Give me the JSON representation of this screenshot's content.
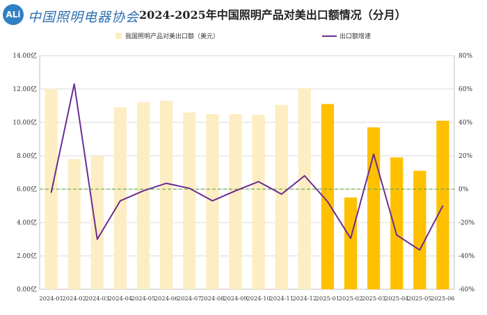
{
  "logo": {
    "badge_text": "ALi",
    "text": "中国照明电器协会"
  },
  "chart_data": {
    "type": "bar+line",
    "title": "2024-2025年中国照明产品对美出口额情况（分月）",
    "categories": [
      "2024-01",
      "2024-02",
      "2024-03",
      "2024-04",
      "2024-05",
      "2024-06",
      "2024-07",
      "2024-08",
      "2024-09",
      "2024-10",
      "2024-11",
      "2024-12",
      "2025-01",
      "2025-02",
      "2025-03",
      "2025-04",
      "2025-05",
      "2025-06"
    ],
    "series": [
      {
        "name": "我国照明产品对美出口额（美元）",
        "type": "bar",
        "axis": "left",
        "values": [
          12.0,
          7.8,
          8.0,
          10.9,
          11.2,
          11.3,
          10.6,
          10.5,
          10.5,
          10.45,
          11.05,
          12.05,
          11.1,
          5.5,
          9.7,
          7.9,
          7.1,
          10.1
        ]
      },
      {
        "name": "出口额增速",
        "type": "line",
        "axis": "right",
        "unit": "%",
        "values": [
          -2,
          63,
          -30,
          -7,
          -1,
          3.5,
          0.5,
          -7,
          -1,
          4.5,
          -3,
          8,
          -7.5,
          -29.5,
          21,
          -27.5,
          -36.5,
          -10
        ]
      }
    ],
    "left_axis": {
      "range": [
        0,
        14
      ],
      "ticks": [
        "0.00亿",
        "2.00亿",
        "4.00亿",
        "6.00亿",
        "8.00亿",
        "10.00亿",
        "12.00亿",
        "14.00亿"
      ]
    },
    "right_axis": {
      "range": [
        -60,
        80
      ],
      "ticks": [
        "-60%",
        "-40%",
        "-20%",
        "0%",
        "20%",
        "40%",
        "60%",
        "80%"
      ]
    },
    "colors": {
      "bar_2024": "#fdedc2",
      "bar_2025": "#ffc000",
      "line": "#6a2c91",
      "zero_line": "#70ad47",
      "grid": "#d9d9d9"
    },
    "grid": true,
    "legend_position": "top"
  }
}
